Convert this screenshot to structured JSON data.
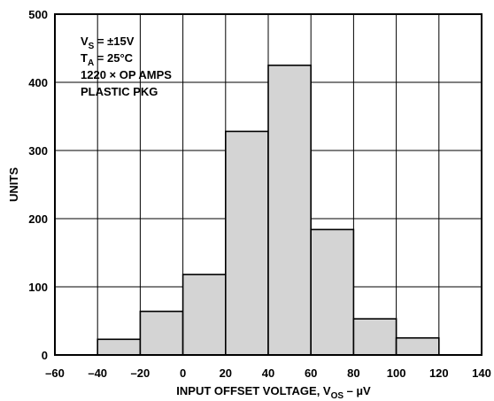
{
  "chart_data": {
    "type": "bar",
    "bins": [
      {
        "from": -40,
        "to": -20,
        "value": 23
      },
      {
        "from": -20,
        "to": 0,
        "value": 64
      },
      {
        "from": 0,
        "to": 20,
        "value": 118
      },
      {
        "from": 20,
        "to": 40,
        "value": 328
      },
      {
        "from": 40,
        "to": 60,
        "value": 425
      },
      {
        "from": 60,
        "to": 80,
        "value": 184
      },
      {
        "from": 80,
        "to": 100,
        "value": 53
      },
      {
        "from": 100,
        "to": 120,
        "value": 25
      }
    ],
    "xlim": [
      -60,
      140
    ],
    "ylim": [
      0,
      500
    ],
    "x_ticks": [
      "–60",
      "–40",
      "–20",
      "0",
      "20",
      "40",
      "60",
      "80",
      "100",
      "120",
      "140"
    ],
    "y_ticks": [
      "0",
      "100",
      "200",
      "300",
      "400",
      "500"
    ],
    "xlabel": {
      "prefix": "INPUT OFFSET VOLTAGE, V",
      "sub": "OS",
      "suffix": " – µV"
    },
    "ylabel": "UNITS",
    "grid": true,
    "bar_color": "#d4d4d4",
    "annotations": [
      {
        "main": "V",
        "sub": "S",
        "rest": " = ±15V"
      },
      {
        "main": "T",
        "sub": "A",
        "rest": " = 25°C"
      },
      {
        "main": "1220 × OP AMPS",
        "sub": "",
        "rest": ""
      },
      {
        "main": "PLASTIC PKG",
        "sub": "",
        "rest": ""
      }
    ]
  }
}
